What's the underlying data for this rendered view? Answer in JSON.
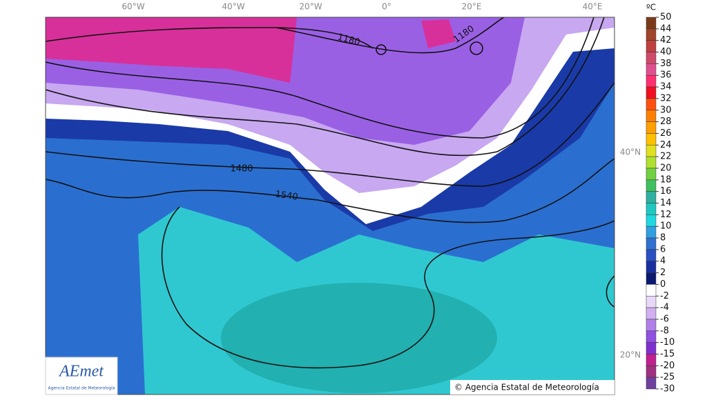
{
  "map": {
    "lon_labels": [
      "60°W",
      "40°W",
      "20°W",
      "0°",
      "20°E",
      "40°E"
    ],
    "lat_labels": [
      "40°N",
      "20°N"
    ],
    "contour_labels": [
      "1180",
      "1180",
      "1480",
      "1540"
    ],
    "copyright": "© Agencia Estatal de Meteorología",
    "logo": {
      "name": "AEmet",
      "subtitle": "Agencia Estatal de Meteorología"
    }
  },
  "legend": {
    "unit": "ºC",
    "ticks": [
      50,
      44,
      42,
      40,
      38,
      36,
      34,
      32,
      30,
      28,
      26,
      24,
      22,
      20,
      18,
      16,
      14,
      12,
      10,
      8,
      6,
      4,
      2,
      0,
      -2,
      -4,
      -6,
      -8,
      -10,
      -15,
      -20,
      -25,
      -30
    ],
    "colors": [
      "#7a3b1a",
      "#a0442a",
      "#c04040",
      "#d04a6a",
      "#e05090",
      "#ff3070",
      "#f01020",
      "#ff5010",
      "#ff8000",
      "#ffa000",
      "#ffc000",
      "#e0e020",
      "#b0e030",
      "#70d040",
      "#40c060",
      "#30b0a0",
      "#20c8c0",
      "#20d8e0",
      "#30a0e0",
      "#3070d0",
      "#2850c0",
      "#1a30a0",
      "#0a1a70",
      "#ffffff",
      "#e8d8f8",
      "#d0b0f0",
      "#b080e8",
      "#9050e0",
      "#8030d0",
      "#c02090",
      "#a03080",
      "#7040a0"
    ]
  }
}
